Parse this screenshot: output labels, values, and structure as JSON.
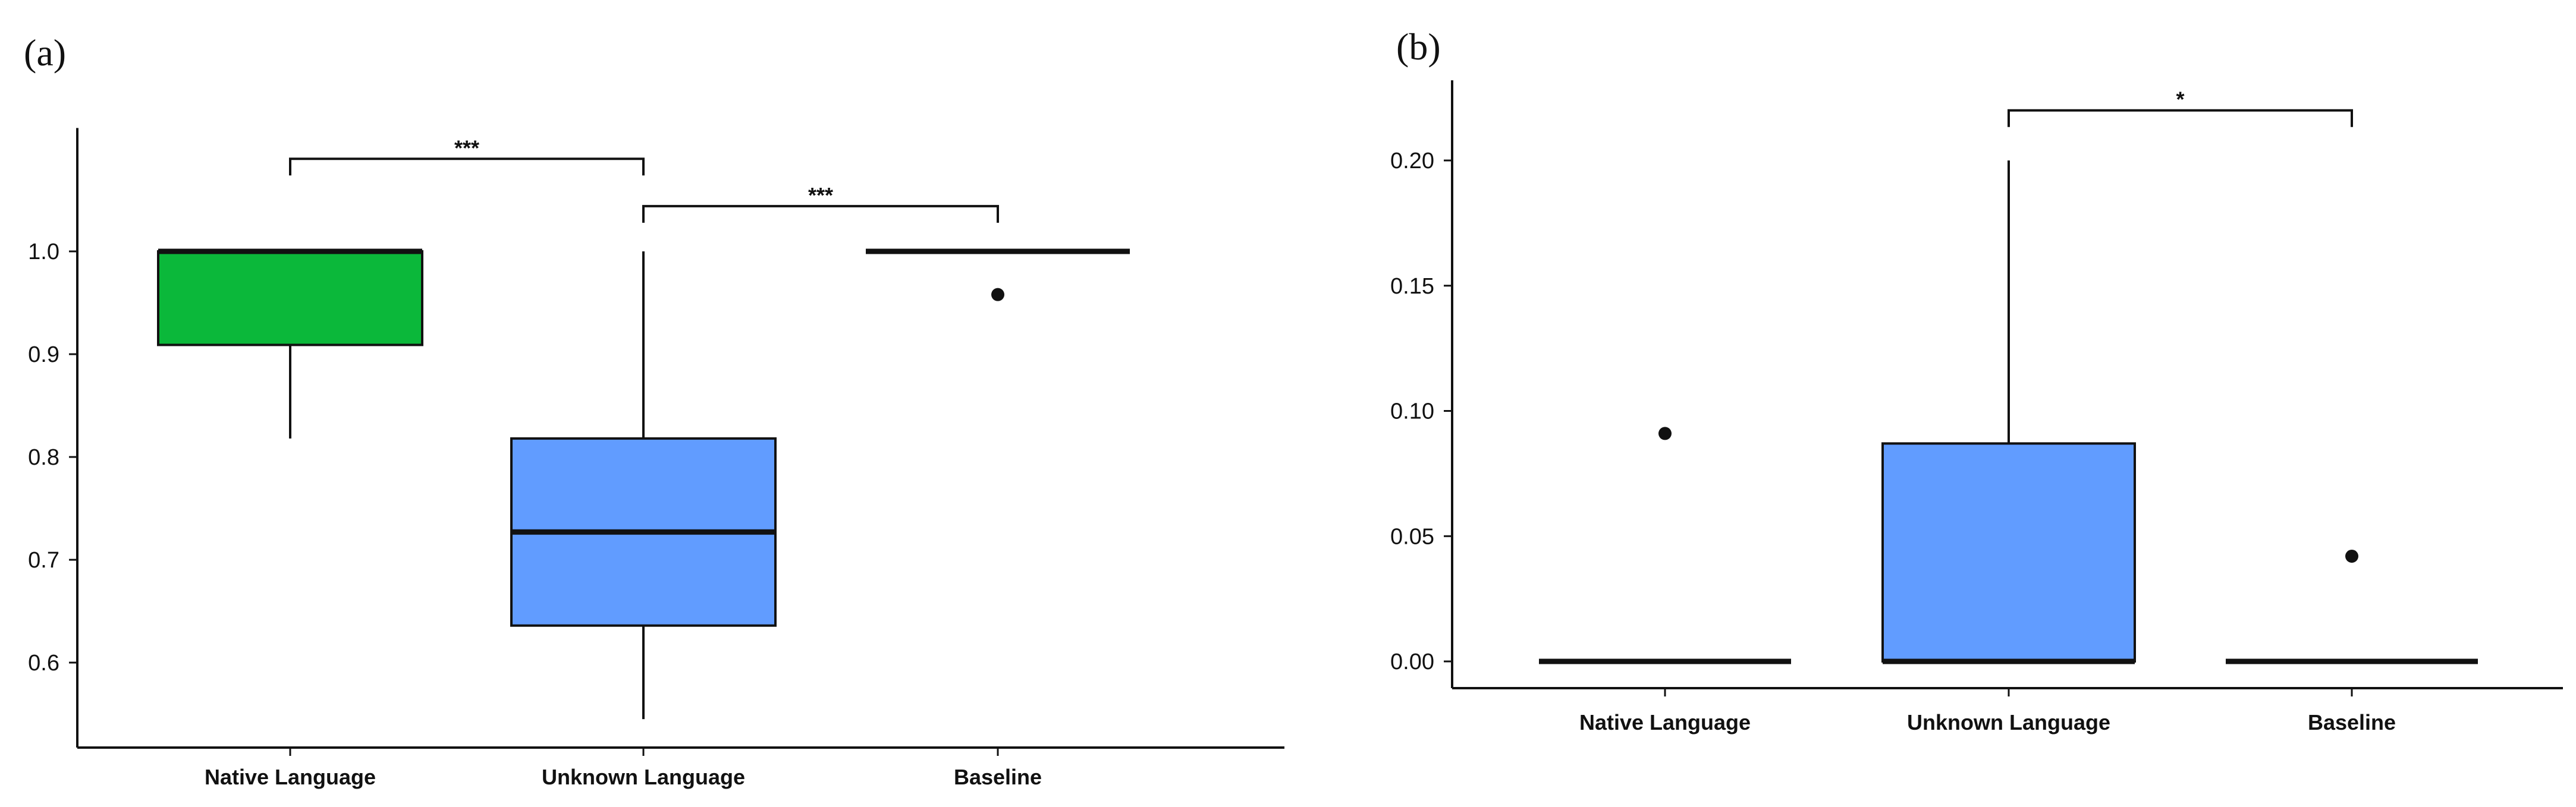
{
  "figure": {
    "panels": [
      {
        "label": "(a)"
      },
      {
        "label": "(b)"
      }
    ]
  },
  "chart_data": [
    {
      "type": "box",
      "panel_label": "(a)",
      "title": "",
      "xlabel": "",
      "ylabel": "",
      "categories": [
        "Native Language",
        "Unknown Language",
        "Baseline"
      ],
      "ylim": [
        0.5,
        1.12
      ],
      "yticks": [
        0.6,
        0.7,
        0.8,
        0.9,
        1.0
      ],
      "ytick_labels": [
        "0.6",
        "0.7",
        "0.8",
        "0.9",
        "1.0"
      ],
      "grid": false,
      "boxes": [
        {
          "category": "Native Language",
          "whisker_low": 0.818,
          "q1": 0.909,
          "median": 1.0,
          "q3": 1.0,
          "whisker_high": 1.0,
          "color": "#0bb83a",
          "outliers": []
        },
        {
          "category": "Unknown Language",
          "whisker_low": 0.545,
          "q1": 0.636,
          "median": 0.727,
          "q3": 0.818,
          "whisker_high": 1.0,
          "color": "#619cff",
          "outliers": []
        },
        {
          "category": "Baseline",
          "whisker_low": 1.0,
          "q1": 1.0,
          "median": 1.0,
          "q3": 1.0,
          "whisker_high": 1.0,
          "color": "#619cff",
          "outliers": [
            0.958
          ]
        }
      ],
      "significance": [
        {
          "from": "Native Language",
          "to": "Unknown Language",
          "label": "***",
          "y": 1.09
        },
        {
          "from": "Unknown Language",
          "to": "Baseline",
          "label": "***",
          "y": 1.044
        }
      ]
    },
    {
      "type": "box",
      "panel_label": "(b)",
      "title": "",
      "xlabel": "",
      "ylabel": "",
      "categories": [
        "Native Language",
        "Unknown Language",
        "Baseline"
      ],
      "ylim": [
        -0.012,
        0.232
      ],
      "yticks": [
        0.0,
        0.05,
        0.1,
        0.15,
        0.2
      ],
      "ytick_labels": [
        "0.00",
        "0.05",
        "0.10",
        "0.15",
        "0.20"
      ],
      "grid": false,
      "boxes": [
        {
          "category": "Native Language",
          "whisker_low": 0.0,
          "q1": 0.0,
          "median": 0.0,
          "q3": 0.0,
          "whisker_high": 0.0,
          "color": "#619cff",
          "outliers": [
            0.091
          ]
        },
        {
          "category": "Unknown Language",
          "whisker_low": 0.0,
          "q1": 0.0,
          "median": 0.0,
          "q3": 0.087,
          "whisker_high": 0.2,
          "color": "#619cff",
          "outliers": []
        },
        {
          "category": "Baseline",
          "whisker_low": 0.0,
          "q1": 0.0,
          "median": 0.0,
          "q3": 0.0,
          "whisker_high": 0.0,
          "color": "#619cff",
          "outliers": [
            0.042
          ]
        }
      ],
      "significance": [
        {
          "from": "Unknown Language",
          "to": "Baseline",
          "label": "*",
          "y": 0.22
        }
      ]
    }
  ]
}
